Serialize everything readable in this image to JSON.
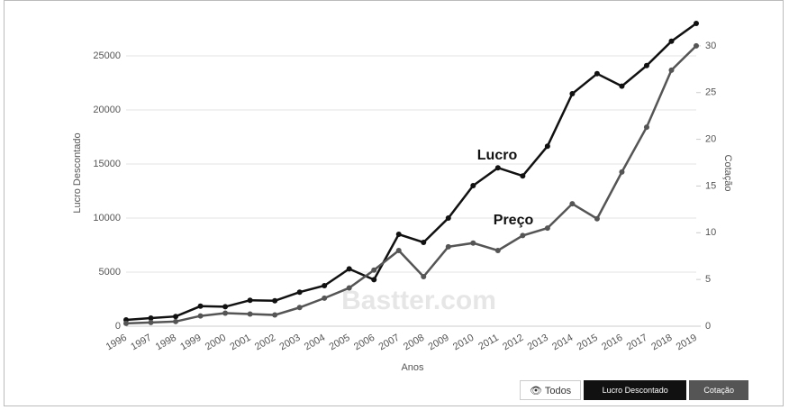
{
  "chart_data": {
    "type": "line",
    "x_label": "Anos",
    "y_label": "Lucro Descontado",
    "y2_label": "Cotação",
    "watermark": "Bastter.com",
    "annotations": [
      "Lucro",
      "Preço"
    ],
    "all_button": "Todos",
    "categories": [
      "1996",
      "1997",
      "1998",
      "1999",
      "2000",
      "2001",
      "2002",
      "2003",
      "2004",
      "2005",
      "2006",
      "2007",
      "2008",
      "2009",
      "2010",
      "2011",
      "2012",
      "2013",
      "2014",
      "2015",
      "2016",
      "2017",
      "2018",
      "2019"
    ],
    "series": [
      {
        "name": "Lucro Descontado",
        "color": "#111111",
        "values": [
          580,
          750,
          900,
          1850,
          1800,
          2400,
          2350,
          3150,
          3750,
          5300,
          4300,
          8500,
          7750,
          10000,
          13000,
          14650,
          13900,
          16650,
          21500,
          23350,
          22200,
          24100,
          26350,
          28000
        ]
      },
      {
        "name": "Cotação",
        "color": "#555555",
        "axis": "y2",
        "values": [
          0.3,
          0.4,
          0.5,
          1.1,
          1.4,
          1.3,
          1.2,
          2.0,
          3.0,
          4.1,
          6.0,
          8.1,
          5.3,
          8.5,
          8.9,
          8.1,
          9.7,
          10.5,
          13.1,
          11.5,
          16.5,
          21.3,
          27.4,
          30.0
        ]
      }
    ],
    "ylim": [
      0,
      28000
    ],
    "yticks": [
      0,
      5000,
      10000,
      15000,
      20000,
      25000
    ],
    "y2lim": [
      0,
      32.4
    ],
    "y2ticks": [
      0,
      5,
      10,
      15,
      20,
      25,
      30
    ],
    "grid": true
  }
}
